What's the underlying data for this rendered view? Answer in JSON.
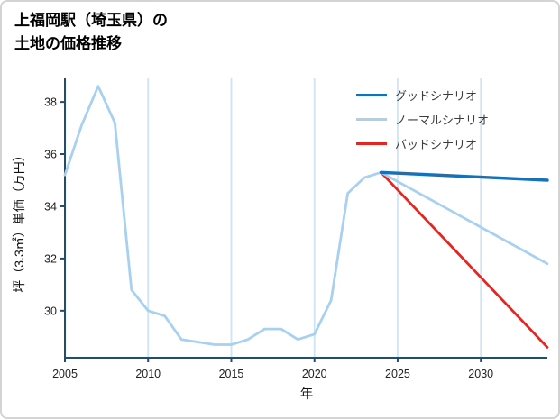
{
  "page": {
    "title_line1": "上福岡駅（埼玉県）の",
    "title_line2": "土地の価格推移"
  },
  "chart_data": {
    "type": "line",
    "title": "上福岡駅（埼玉県）の土地の価格推移",
    "xlabel": "年",
    "ylabel": "坪（3.3㎡）単価（万円）",
    "xlim": [
      2005,
      2034
    ],
    "ylim": [
      28.2,
      38.9
    ],
    "xticks": [
      2005,
      2010,
      2015,
      2020,
      2025,
      2030
    ],
    "yticks": [
      30,
      32,
      34,
      36,
      38
    ],
    "grid": "vertical",
    "grid_color": "#cfe4f5",
    "axis_color": "#1f4e6e",
    "tick_label_color": "#222222",
    "legend_position": "top-right",
    "series": [
      {
        "name": "グッドシナリオ",
        "color": "#1572b8",
        "width": 3.4,
        "x": [
          2024,
          2034
        ],
        "values": [
          35.3,
          35.0
        ]
      },
      {
        "name": "ノーマルシナリオ",
        "color": "#a8d0ef",
        "width": 2.8,
        "x": [
          2005,
          2006,
          2007,
          2008,
          2009,
          2010,
          2011,
          2012,
          2013,
          2014,
          2015,
          2016,
          2017,
          2018,
          2019,
          2020,
          2021,
          2022,
          2023,
          2024,
          2034
        ],
        "values": [
          35.2,
          37.1,
          38.6,
          37.2,
          30.8,
          30.0,
          29.8,
          28.9,
          28.8,
          28.7,
          28.7,
          28.9,
          29.3,
          29.3,
          28.9,
          29.1,
          30.4,
          34.5,
          35.1,
          35.3,
          31.8
        ]
      },
      {
        "name": "バッドシナリオ",
        "color": "#e62420",
        "width": 2.8,
        "x": [
          2024,
          2034
        ],
        "values": [
          35.3,
          28.6
        ]
      }
    ]
  }
}
